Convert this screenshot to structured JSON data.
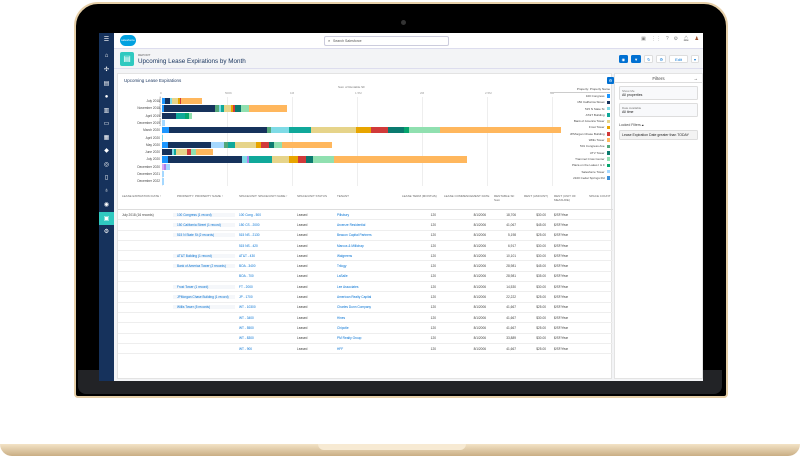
{
  "app": {
    "brand": "salesforce",
    "search_placeholder": "Search Salesforce",
    "header_icons": [
      "favorites-icon",
      "app-launcher-icon",
      "help-icon",
      "settings-icon",
      "notifications-icon",
      "avatar"
    ]
  },
  "header": {
    "object_label": "REPORT",
    "title": "Upcoming Lease Expirations by Month",
    "buttons": {
      "chart": "chart-icon",
      "filter": "filter-icon",
      "refresh": "↻",
      "settings": "⚙",
      "edit": "Edit",
      "more": "▾"
    }
  },
  "rail": {
    "items": [
      "☰",
      "⌂",
      "✣",
      "▤",
      "●",
      "▥",
      "▭",
      "▦",
      "◆",
      "◎",
      "▯",
      "♁",
      "◉",
      "▣",
      "⚙"
    ]
  },
  "chart": {
    "title": "Upcoming Lease Expirations",
    "axis_title": "Sum of Rentable SF",
    "y_axis_title": "Lease Expiration Date",
    "legend_title": "Property: Property Name"
  },
  "chart_data": {
    "type": "bar",
    "orientation": "horizontal-stacked",
    "title": "Upcoming Lease Expirations",
    "xlabel": "Sum of Rentable SF",
    "ylabel": "Lease Expiration Date",
    "xlim": [
      0,
      3000000
    ],
    "x_ticks": [
      "0",
      "500K",
      "1M",
      "1.5M",
      "2M",
      "2.5M",
      "3M"
    ],
    "categories": [
      "July 2018",
      "November 2018",
      "April 2019",
      "December 2019",
      "March 2020",
      "April 2020",
      "May 2020",
      "June 2020",
      "July 2020",
      "December 2020",
      "December 2021",
      "December 2022"
    ],
    "legend": [
      {
        "name": "100 Congress",
        "color": "#1b96ff"
      },
      {
        "name": "150 California Street",
        "color": "#16325c"
      },
      {
        "name": "515 N State St",
        "color": "#7fdbe6"
      },
      {
        "name": "AT&T Building",
        "color": "#10a89a"
      },
      {
        "name": "Bank of America Tower",
        "color": "#e6d48a"
      },
      {
        "name": "Frost Tower",
        "color": "#e8a500"
      },
      {
        "name": "JPMorgan Chase Building",
        "color": "#d13a3a"
      },
      {
        "name": "Willis Tower",
        "color": "#ffb75d"
      },
      {
        "name": "501 Congress Ave",
        "color": "#54a77b"
      },
      {
        "name": "UTV Tower",
        "color": "#0b7a6f"
      },
      {
        "name": "Trammel Crow Center",
        "color": "#90e0b0"
      },
      {
        "name": "Plaza on the Lakes I & II",
        "color": "#06a56e"
      },
      {
        "name": "Salesforce Tower",
        "color": "#a5d8ff"
      },
      {
        "name": "2100 Cedar Springs Rd",
        "color": "#3c8fd8"
      }
    ],
    "series_segments": {
      "July 2018": [
        [
          "#1b96ff",
          20000
        ],
        [
          "#16325c",
          40000
        ],
        [
          "#7fdbe6",
          15000
        ],
        [
          "#e6d48a",
          50000
        ],
        [
          "#e8a500",
          10000
        ],
        [
          "#d13a3a",
          15000
        ],
        [
          "#ffb75d",
          160000
        ]
      ],
      "November 2018": [
        [
          "#1b96ff",
          15000
        ],
        [
          "#16325c",
          395000
        ],
        [
          "#54a77b",
          25000
        ],
        [
          "#7fdbe6",
          20000
        ],
        [
          "#10a89a",
          20000
        ],
        [
          "#e6d48a",
          55000
        ],
        [
          "#e8a500",
          20000
        ],
        [
          "#d13a3a",
          15000
        ],
        [
          "#0b7a6f",
          40000
        ],
        [
          "#90e0b0",
          65000
        ],
        [
          "#ffb75d",
          290000
        ]
      ],
      "April 2019": [
        [
          "#16325c",
          110000
        ],
        [
          "#10a89a",
          65000
        ],
        [
          "#06a56e",
          35000
        ],
        [
          "#90e0b0",
          20000
        ]
      ],
      "December 2019": [
        [
          "#a5d8ff",
          20000
        ]
      ],
      "March 2020": [
        [
          "#1b96ff",
          50000
        ],
        [
          "#16325c",
          760000
        ],
        [
          "#54a77b",
          30000
        ],
        [
          "#7fdbe6",
          140000
        ],
        [
          "#10a89a",
          170000
        ],
        [
          "#e6d48a",
          340000
        ],
        [
          "#e8a500",
          120000
        ],
        [
          "#d13a3a",
          130000
        ],
        [
          "#0b7a6f",
          120000
        ],
        [
          "#06a56e",
          40000
        ],
        [
          "#90e0b0",
          240000
        ],
        [
          "#ffb75d",
          930000
        ]
      ],
      "April 2020": [
        [
          "#7fdbe6",
          5000
        ]
      ],
      "May 2020": [
        [
          "#1b96ff",
          45000
        ],
        [
          "#16325c",
          330000
        ],
        [
          "#a5d8ff",
          100000
        ],
        [
          "#54a77b",
          30000
        ],
        [
          "#10a89a",
          55000
        ],
        [
          "#e6d48a",
          165000
        ],
        [
          "#e8a500",
          35000
        ],
        [
          "#d13a3a",
          65000
        ],
        [
          "#0b7a6f",
          40000
        ],
        [
          "#90e0b0",
          55000
        ],
        [
          "#ffb75d",
          390000
        ]
      ],
      "June 2020": [
        [
          "#16325c",
          75000
        ],
        [
          "#7fdbe6",
          15000
        ],
        [
          "#10a89a",
          20000
        ],
        [
          "#e6d48a",
          85000
        ],
        [
          "#d13a3a",
          30000
        ],
        [
          "#90e0b0",
          35000
        ],
        [
          "#ffb75d",
          130000
        ]
      ],
      "July 2020": [
        [
          "#1b96ff",
          45000
        ],
        [
          "#16325c",
          570000
        ],
        [
          "#7fdbe6",
          40000
        ],
        [
          "#b07fe6",
          15000
        ],
        [
          "#10a89a",
          175000
        ],
        [
          "#e6d48a",
          135000
        ],
        [
          "#e8a500",
          65000
        ],
        [
          "#d13a3a",
          65000
        ],
        [
          "#0b7a6f",
          55000
        ],
        [
          "#90e0b0",
          155000
        ],
        [
          "#ffb75d",
          1030000
        ]
      ],
      "December 2020": [
        [
          "#d7a9f5",
          15000
        ],
        [
          "#b07fe6",
          15000
        ],
        [
          "#a5d8ff",
          30000
        ]
      ],
      "December 2021": [
        [
          "#a5d8ff",
          15000
        ]
      ],
      "December 2022": [
        [
          "#a5d8ff",
          15000
        ]
      ]
    }
  },
  "table": {
    "columns": [
      "LEASE EXPIRATION DATE ↑",
      "PROPERTY: PROPERTY NAME ↑",
      "SPACE/UNIT: SPACE/UNIT NAME ↑",
      "SPACE/UNIT STATUS",
      "TENANT",
      "LEASE TERM (MONTHS)",
      "LEASE COMMENCEMENT DATE",
      "RENTABLE SF Sum",
      "RENT (AMOUNT)",
      "RENT (UNIT OF MEASURE)",
      "SPACE COUNT"
    ],
    "group": {
      "date": "July 2018",
      "count": "(16 records)"
    },
    "rows": [
      {
        "property": "100 Congress",
        "prop_count": "(1 record)",
        "unit": "100 Cong - 500",
        "status": "Leased",
        "tenant": "Pillsbury",
        "term": "120",
        "commence": "8/1/2006",
        "sf": "18,706",
        "rent": "$30.00",
        "uom": "$/SF/Year"
      },
      {
        "property": "150 California Street",
        "prop_count": "(1 record)",
        "unit": "150 CS - 2000",
        "status": "Leased",
        "tenant": "Arcenze Residential",
        "term": "120",
        "commence": "8/1/2006",
        "sf": "41,067",
        "rent": "$45.00",
        "uom": "$/SF/Year"
      },
      {
        "property": "515 N State St",
        "prop_count": "(2 records)",
        "unit": "515 NS - 2130",
        "status": "Leased",
        "tenant": "Beacon Capital Partners",
        "term": "120",
        "commence": "8/1/2006",
        "sf": "5,198",
        "rent": "$25.00",
        "uom": "$/SF/Year"
      },
      {
        "property": "",
        "prop_count": "",
        "unit": "515 NS - 420",
        "status": "Leased",
        "tenant": "Marcus & Millichap",
        "term": "120",
        "commence": "8/1/2006",
        "sf": "6,917",
        "rent": "$30.00",
        "uom": "$/SF/Year"
      },
      {
        "property": "AT&T Building",
        "prop_count": "(1 record)",
        "unit": "AT&T - 430",
        "status": "Leased",
        "tenant": "Walgreens",
        "term": "120",
        "commence": "8/1/2006",
        "sf": "10,101",
        "rent": "$30.00",
        "uom": "$/SF/Year"
      },
      {
        "property": "Bank of America Tower",
        "prop_count": "(2 records)",
        "unit": "BOA - 3400",
        "status": "Leased",
        "tenant": "Trilogy",
        "term": "120",
        "commence": "8/1/2006",
        "sf": "28,981",
        "rent": "$45.00",
        "uom": "$/SF/Year"
      },
      {
        "property": "",
        "prop_count": "",
        "unit": "BOA - 700",
        "status": "Leased",
        "tenant": "LaSalle",
        "term": "120",
        "commence": "8/1/2006",
        "sf": "28,981",
        "rent": "$35.00",
        "uom": "$/SF/Year"
      },
      {
        "property": "Frost Tower",
        "prop_count": "(1 record)",
        "unit": "FT - 2000",
        "status": "Leased",
        "tenant": "Lee Associates",
        "term": "120",
        "commence": "8/1/2006",
        "sf": "14,530",
        "rent": "$30.00",
        "uom": "$/SF/Year"
      },
      {
        "property": "JPMorgan Chase Building",
        "prop_count": "(1 record)",
        "unit": "JP - 1700",
        "status": "Leased",
        "tenant": "American Realty Capital",
        "term": "120",
        "commence": "8/1/2006",
        "sf": "22,222",
        "rent": "$25.00",
        "uom": "$/SF/Year"
      },
      {
        "property": "Willis Tower",
        "prop_count": "(5 records)",
        "unit": "WT - 10300",
        "status": "Leased",
        "tenant": "Charles Dunn Company",
        "term": "120",
        "commence": "8/1/2006",
        "sf": "41,667",
        "rent": "$25.00",
        "uom": "$/SF/Year"
      },
      {
        "property": "",
        "prop_count": "",
        "unit": "WT - 3400",
        "status": "Leased",
        "tenant": "Hines",
        "term": "120",
        "commence": "8/1/2006",
        "sf": "41,667",
        "rent": "$30.00",
        "uom": "$/SF/Year"
      },
      {
        "property": "",
        "prop_count": "",
        "unit": "WT - 5500",
        "status": "Leased",
        "tenant": "Chipotle",
        "term": "120",
        "commence": "8/1/2006",
        "sf": "41,667",
        "rent": "$25.00",
        "uom": "$/SF/Year"
      },
      {
        "property": "",
        "prop_count": "",
        "unit": "WT - 8300",
        "status": "Leased",
        "tenant": "PM Realty Group",
        "term": "120",
        "commence": "8/1/2006",
        "sf": "33,889",
        "rent": "$30.00",
        "uom": "$/SF/Year"
      },
      {
        "property": "",
        "prop_count": "",
        "unit": "WT - 900",
        "status": "Leased",
        "tenant": "HFF",
        "term": "120",
        "commence": "8/1/2006",
        "sf": "41,667",
        "rent": "$25.00",
        "uom": "$/SF/Year"
      }
    ]
  },
  "filters": {
    "title": "Filters",
    "collapse": "→",
    "show_me_label": "Show Me",
    "show_me_value": "All properties",
    "date_label": "Date Available",
    "date_value": "All time",
    "locked_label": "Locked Filters",
    "locked_value": "Lease Expiration Date greater than TODAY"
  }
}
